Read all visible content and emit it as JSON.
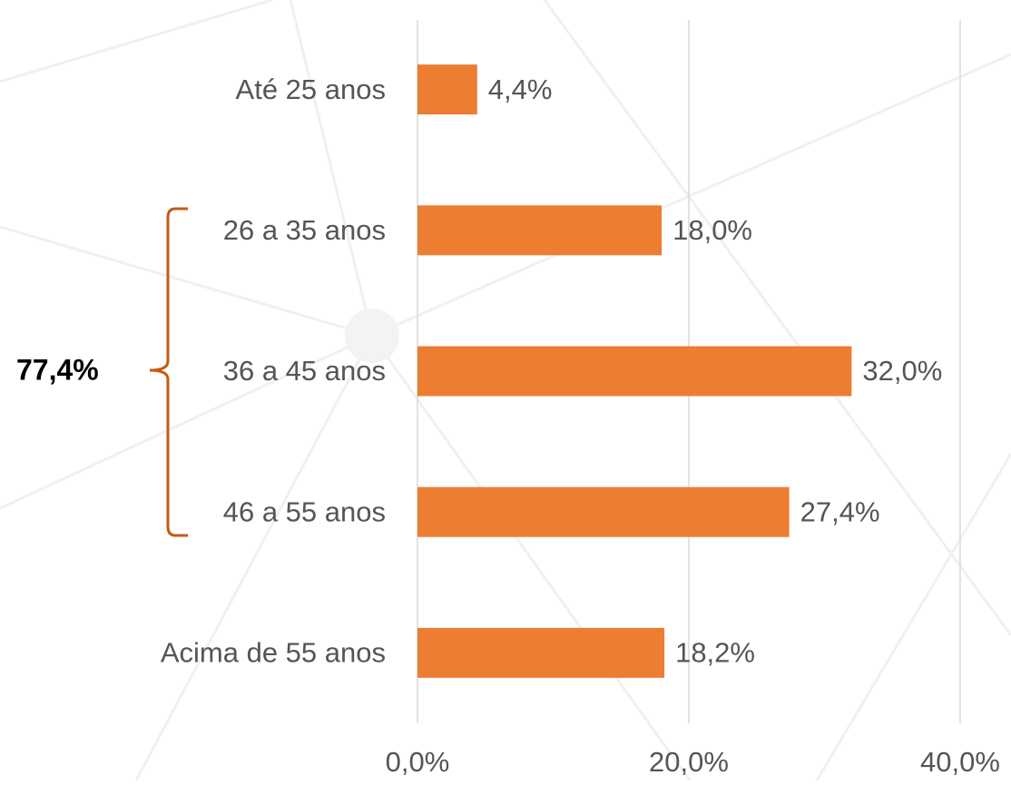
{
  "chart_data": {
    "type": "barh",
    "categories": [
      "Até 25 anos",
      "26 a 35 anos",
      "36 a 45 anos",
      "46 a 55 anos",
      "Acima de 55 anos"
    ],
    "values": [
      4.4,
      18.0,
      32.0,
      27.4,
      18.2
    ],
    "value_labels": [
      "4,4%",
      "18,0%",
      "32,0%",
      "27,4%",
      "18,2%"
    ],
    "color": "#ed7d31",
    "xlim": [
      0,
      40
    ],
    "xticks": [
      {
        "value": 0,
        "label": "0,0%"
      },
      {
        "value": 20,
        "label": "20,0%"
      },
      {
        "value": 40,
        "label": "40,0%"
      }
    ],
    "grid": true,
    "annotation": "77,4%",
    "annotation_color": "#c55a11"
  }
}
